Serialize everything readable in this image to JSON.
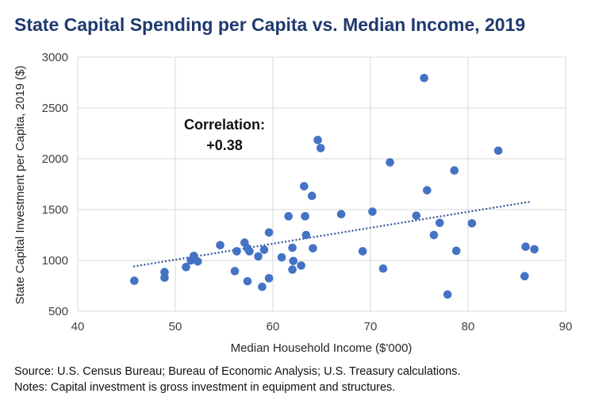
{
  "title": "State Capital Spending per Capita vs. Median Income, 2019",
  "annotation": {
    "line1": "Correlation:",
    "line2": "+0.38"
  },
  "notes": {
    "source": "Source: U.S. Census Bureau; Bureau of Economic Analysis; U.S. Treasury calculations.",
    "note": "Notes: Capital investment is gross investment in equipment and structures."
  },
  "colors": {
    "point": "#4472c4",
    "trend": "#2f5597",
    "grid": "#d9d9d9",
    "title": "#1f3a6e"
  },
  "chart_data": {
    "type": "scatter",
    "title": "State Capital Spending per Capita vs. Median Income, 2019",
    "xlabel": "Median Household Income ($'000)",
    "ylabel": "State Capital Investment per Capita, 2019 ($)",
    "xlim": [
      40,
      90
    ],
    "ylim": [
      500,
      3000
    ],
    "xticks": [
      40,
      50,
      60,
      70,
      80,
      90
    ],
    "yticks": [
      500,
      1000,
      1500,
      2000,
      2500,
      3000
    ],
    "grid": "vertical and horizontal major gridlines",
    "legend": "none",
    "trendline": {
      "type": "linear",
      "x": [
        45.7,
        86.5
      ],
      "y": [
        940,
        1580
      ],
      "style": "dotted"
    },
    "correlation": "+0.38",
    "points": [
      {
        "x": 45.8,
        "y": 800
      },
      {
        "x": 48.9,
        "y": 830
      },
      {
        "x": 48.9,
        "y": 885
      },
      {
        "x": 51.1,
        "y": 935
      },
      {
        "x": 51.6,
        "y": 1000
      },
      {
        "x": 51.9,
        "y": 1045
      },
      {
        "x": 52.3,
        "y": 990
      },
      {
        "x": 54.6,
        "y": 1150
      },
      {
        "x": 56.1,
        "y": 895
      },
      {
        "x": 56.3,
        "y": 1090
      },
      {
        "x": 57.1,
        "y": 1175
      },
      {
        "x": 57.4,
        "y": 1120
      },
      {
        "x": 57.6,
        "y": 1090
      },
      {
        "x": 57.4,
        "y": 795
      },
      {
        "x": 58.5,
        "y": 1040
      },
      {
        "x": 58.9,
        "y": 740
      },
      {
        "x": 59.1,
        "y": 1105
      },
      {
        "x": 59.6,
        "y": 825
      },
      {
        "x": 59.6,
        "y": 1275
      },
      {
        "x": 60.9,
        "y": 1030
      },
      {
        "x": 61.6,
        "y": 1435
      },
      {
        "x": 62.0,
        "y": 1125
      },
      {
        "x": 62.1,
        "y": 995
      },
      {
        "x": 62.0,
        "y": 910
      },
      {
        "x": 62.9,
        "y": 950
      },
      {
        "x": 63.2,
        "y": 1730
      },
      {
        "x": 63.3,
        "y": 1435
      },
      {
        "x": 63.4,
        "y": 1250
      },
      {
        "x": 64.0,
        "y": 1635
      },
      {
        "x": 64.1,
        "y": 1120
      },
      {
        "x": 64.6,
        "y": 2185
      },
      {
        "x": 64.9,
        "y": 2105
      },
      {
        "x": 67.0,
        "y": 1455
      },
      {
        "x": 69.2,
        "y": 1090
      },
      {
        "x": 70.2,
        "y": 1480
      },
      {
        "x": 71.3,
        "y": 920
      },
      {
        "x": 72.0,
        "y": 1965
      },
      {
        "x": 74.7,
        "y": 1440
      },
      {
        "x": 75.5,
        "y": 2795
      },
      {
        "x": 75.8,
        "y": 1690
      },
      {
        "x": 76.5,
        "y": 1250
      },
      {
        "x": 77.1,
        "y": 1370
      },
      {
        "x": 77.9,
        "y": 665
      },
      {
        "x": 78.6,
        "y": 1885
      },
      {
        "x": 78.8,
        "y": 1095
      },
      {
        "x": 80.4,
        "y": 1365
      },
      {
        "x": 83.1,
        "y": 2080
      },
      {
        "x": 85.8,
        "y": 845
      },
      {
        "x": 85.9,
        "y": 1135
      },
      {
        "x": 86.8,
        "y": 1110
      }
    ]
  }
}
